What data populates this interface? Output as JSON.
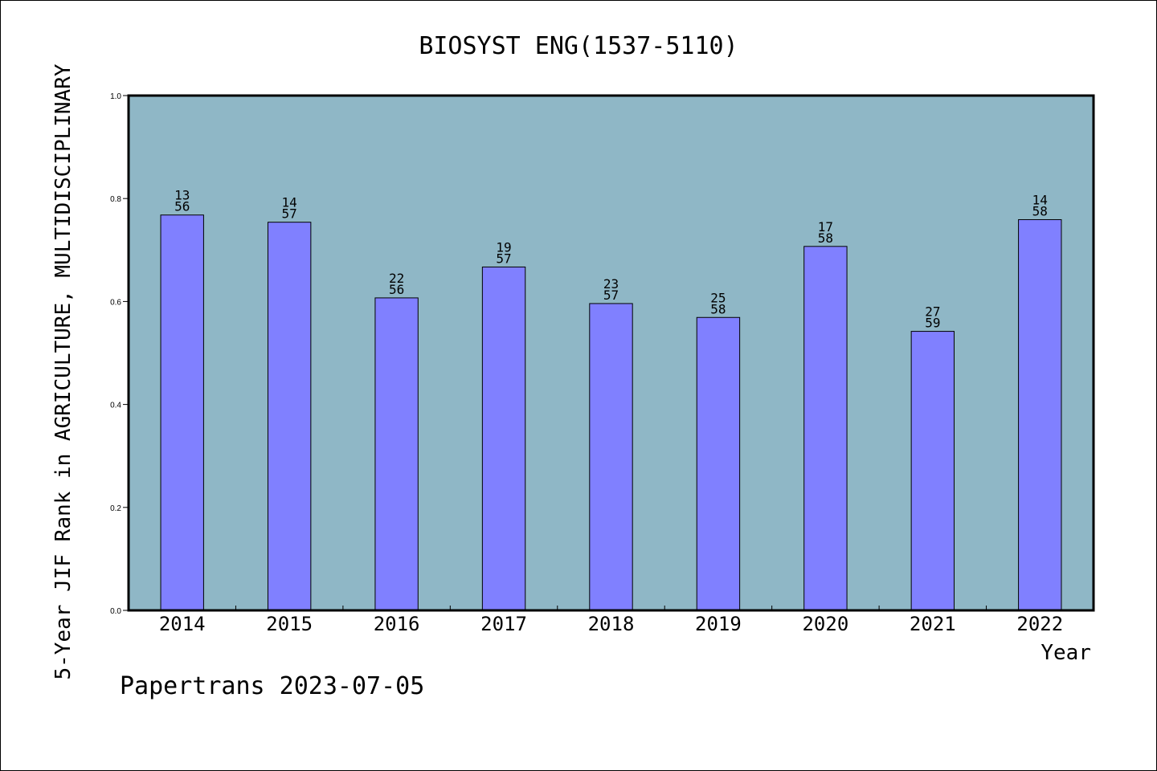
{
  "footer": "Papertrans 2023-07-05",
  "chart_data": {
    "type": "bar",
    "title": "BIOSYST ENG(1537-5110)",
    "xlabel": "Year",
    "ylabel": "5-Year JIF Rank in AGRICULTURE, MULTIDISCIPLINARY",
    "categories": [
      "2014",
      "2015",
      "2016",
      "2017",
      "2018",
      "2019",
      "2020",
      "2021",
      "2022"
    ],
    "values": [
      0.768,
      0.754,
      0.607,
      0.667,
      0.596,
      0.569,
      0.707,
      0.542,
      0.759
    ],
    "ranks": [
      "13",
      "14",
      "22",
      "19",
      "23",
      "25",
      "17",
      "27",
      "14"
    ],
    "totals": [
      "56",
      "57",
      "56",
      "57",
      "57",
      "58",
      "58",
      "59",
      "58"
    ],
    "ylim": [
      0,
      1.0
    ],
    "yticks": [
      "0.0",
      "0.2",
      "0.4",
      "0.6",
      "0.8",
      "1.0"
    ],
    "grid": false,
    "colors": {
      "plot_background": "#8fb7c6",
      "bar": "#8080ff",
      "bar_edge": "#000000"
    }
  }
}
